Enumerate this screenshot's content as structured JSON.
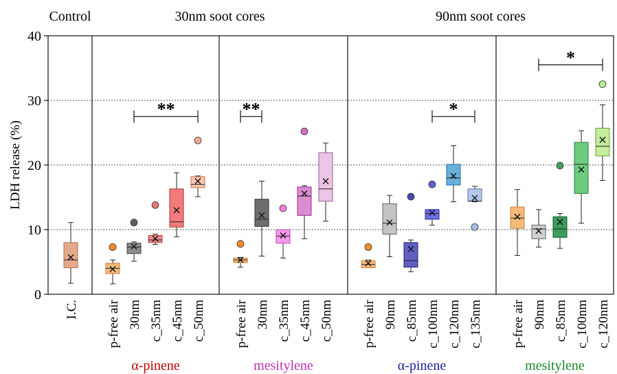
{
  "chart_data": {
    "type": "box",
    "ylabel": "LDH release (%)",
    "ylim": [
      0,
      40
    ],
    "yticks": [
      0,
      10,
      20,
      30,
      40
    ],
    "grid": "dotted horizontal at 10, 20, 30",
    "panel_headers": [
      {
        "label": "Control"
      },
      {
        "label": "30nm soot cores"
      },
      {
        "label": "90nm soot cores"
      }
    ],
    "groups": [
      {
        "label": "",
        "color": "#000000",
        "boxes": [
          {
            "label": "I.C.",
            "fill": "#e3a98a",
            "stroke": "#b5714d",
            "min": 1.7,
            "q1": 4.1,
            "median": 5.3,
            "q3": 8.0,
            "max": 11.1,
            "mean": 5.7,
            "outliers": []
          }
        ]
      },
      {
        "label": "α-pinene",
        "color": "#c00000",
        "boxes": [
          {
            "label": "p-free air",
            "fill": "#f5b97a",
            "stroke": "#c8803c",
            "min": 1.6,
            "q1": 3.2,
            "median": 4.0,
            "q3": 4.8,
            "max": 5.3,
            "mean": 3.9,
            "outliers": [
              {
                "v": 7.3,
                "color": "#f28c28"
              }
            ]
          },
          {
            "label": "30nm",
            "fill": "#8c8c8c",
            "stroke": "#404040",
            "min": 5.1,
            "q1": 6.3,
            "median": 7.3,
            "q3": 7.9,
            "max": 8.1,
            "mean": 7.4,
            "outliers": [
              {
                "v": 11.1,
                "color": "#606060"
              }
            ]
          },
          {
            "label": "c_35nm",
            "fill": "#ee8c8c",
            "stroke": "#b04040",
            "min": 7.7,
            "q1": 8.0,
            "median": 8.4,
            "q3": 9.1,
            "max": 9.3,
            "mean": 8.6,
            "outliers": [
              {
                "v": 13.8,
                "color": "#e37878"
              }
            ]
          },
          {
            "label": "c_45nm",
            "fill": "#f07c7c",
            "stroke": "#b03030",
            "min": 8.9,
            "q1": 10.4,
            "median": 11.2,
            "q3": 16.3,
            "max": 18.8,
            "mean": 13.0,
            "outliers": []
          },
          {
            "label": "c_50nm",
            "fill": "#f8c8b0",
            "stroke": "#c07050",
            "min": 15.1,
            "q1": 16.5,
            "median": 17.0,
            "q3": 18.2,
            "max": 18.3,
            "mean": 17.5,
            "outliers": [
              {
                "v": 23.8,
                "color": "#f4a890"
              }
            ]
          }
        ]
      },
      {
        "label": "mesitylene",
        "color": "#c030b0",
        "boxes": [
          {
            "label": "p-free air",
            "fill": "#f5b97a",
            "stroke": "#c8803c",
            "min": 4.2,
            "q1": 4.9,
            "median": 5.3,
            "q3": 5.6,
            "max": 5.7,
            "mean": 5.3,
            "outliers": [
              {
                "v": 7.8,
                "color": "#f28c28"
              }
            ]
          },
          {
            "label": "30nm",
            "fill": "#6e6e6e",
            "stroke": "#303030",
            "min": 5.9,
            "q1": 10.5,
            "median": 11.6,
            "q3": 14.7,
            "max": 17.5,
            "mean": 12.2,
            "outliers": []
          },
          {
            "label": "c_35nm",
            "fill": "#f59ae8",
            "stroke": "#c040b0",
            "min": 5.6,
            "q1": 7.9,
            "median": 9.0,
            "q3": 10.0,
            "max": 10.0,
            "mean": 9.1,
            "outliers": [
              {
                "v": 13.3,
                "color": "#ee80e0"
              }
            ]
          },
          {
            "label": "c_45nm",
            "fill": "#dc8cd0",
            "stroke": "#9c3090",
            "min": 8.6,
            "q1": 12.2,
            "median": 15.2,
            "q3": 16.6,
            "max": 16.8,
            "mean": 15.6,
            "outliers": [
              {
                "v": 25.2,
                "color": "#d070c4"
              }
            ]
          },
          {
            "label": "c_50nm",
            "fill": "#ecc4e6",
            "stroke": "#a05a98",
            "min": 11.3,
            "q1": 14.4,
            "median": 16.3,
            "q3": 21.9,
            "max": 23.4,
            "mean": 17.5,
            "outliers": []
          }
        ]
      },
      {
        "label": "α-pinene",
        "color": "#2020a0",
        "boxes": [
          {
            "label": "p-free air",
            "fill": "#f5b97a",
            "stroke": "#c8803c",
            "min": 4.1,
            "q1": 4.1,
            "median": 4.6,
            "q3": 5.2,
            "max": 5.3,
            "mean": 4.8,
            "outliers": [
              {
                "v": 7.3,
                "color": "#f28c28"
              }
            ]
          },
          {
            "label": "90nm",
            "fill": "#c4c4c4",
            "stroke": "#606060",
            "min": 5.8,
            "q1": 9.3,
            "median": 11.0,
            "q3": 14.0,
            "max": 15.3,
            "mean": 11.1,
            "outliers": []
          },
          {
            "label": "c_85nm",
            "fill": "#6060c0",
            "stroke": "#202070",
            "min": 3.5,
            "q1": 4.2,
            "median": 5.2,
            "q3": 8.0,
            "max": 8.4,
            "mean": 7.0,
            "outliers": [
              {
                "v": 15.1,
                "color": "#4848a8"
              }
            ]
          },
          {
            "label": "c_100nm",
            "fill": "#6f6fe0",
            "stroke": "#2a2a9a",
            "min": 10.7,
            "q1": 11.6,
            "median": 12.5,
            "q3": 13.1,
            "max": 13.1,
            "mean": 12.6,
            "outliers": [
              {
                "v": 17.0,
                "color": "#6060d8"
              }
            ]
          },
          {
            "label": "c_120nm",
            "fill": "#6aaedc",
            "stroke": "#2a6e9c",
            "min": 14.3,
            "q1": 16.9,
            "median": 18.0,
            "q3": 20.1,
            "max": 23.0,
            "mean": 18.3,
            "outliers": []
          },
          {
            "label": "c_135nm",
            "fill": "#b4c8ec",
            "stroke": "#607090",
            "min": 14.3,
            "q1": 14.4,
            "median": 14.4,
            "q3": 16.3,
            "max": 16.7,
            "mean": 14.9,
            "outliers": [
              {
                "v": 10.4,
                "color": "#a8c0e8"
              }
            ]
          }
        ]
      },
      {
        "label": "mesitylene",
        "color": "#1a8a2a",
        "boxes": [
          {
            "label": "p-free air",
            "fill": "#f5b97a",
            "stroke": "#c8803c",
            "min": 6.0,
            "q1": 10.2,
            "median": 11.8,
            "q3": 13.5,
            "max": 16.2,
            "mean": 12.0,
            "outliers": []
          },
          {
            "label": "90nm",
            "fill": "#d0d0d0",
            "stroke": "#606060",
            "min": 7.3,
            "q1": 8.6,
            "median": 10.1,
            "q3": 10.7,
            "max": 13.1,
            "mean": 9.8,
            "outliers": []
          },
          {
            "label": "c_85nm",
            "fill": "#3c9c5c",
            "stroke": "#1c5c30",
            "min": 7.1,
            "q1": 8.8,
            "median": 10.1,
            "q3": 12.0,
            "max": 12.5,
            "mean": 11.2,
            "outliers": [
              {
                "v": 19.9,
                "color": "#40a060"
              }
            ]
          },
          {
            "label": "c_100nm",
            "fill": "#6ccc80",
            "stroke": "#2c7c40",
            "min": 11.0,
            "q1": 15.6,
            "median": 20.1,
            "q3": 23.5,
            "max": 25.3,
            "mean": 19.3,
            "outliers": []
          },
          {
            "label": "c_120nm",
            "fill": "#c4ec9c",
            "stroke": "#6c9c40",
            "min": 17.6,
            "q1": 21.4,
            "median": 22.9,
            "q3": 25.7,
            "max": 29.3,
            "mean": 23.9,
            "outliers": [
              {
                "v": 32.5,
                "color": "#b8e890"
              }
            ]
          }
        ]
      }
    ],
    "significance": [
      {
        "label": "**",
        "group": 1,
        "from": 1,
        "to": 4,
        "y": 27.5
      },
      {
        "label": "**",
        "group": 2,
        "from": 0,
        "to": 1,
        "y": 27.5
      },
      {
        "label": "*",
        "group": 3,
        "from": 3,
        "to": 5,
        "y": 27.5
      },
      {
        "label": "*",
        "group": 4,
        "from": 1,
        "to": 4,
        "y": 35.5
      }
    ]
  }
}
